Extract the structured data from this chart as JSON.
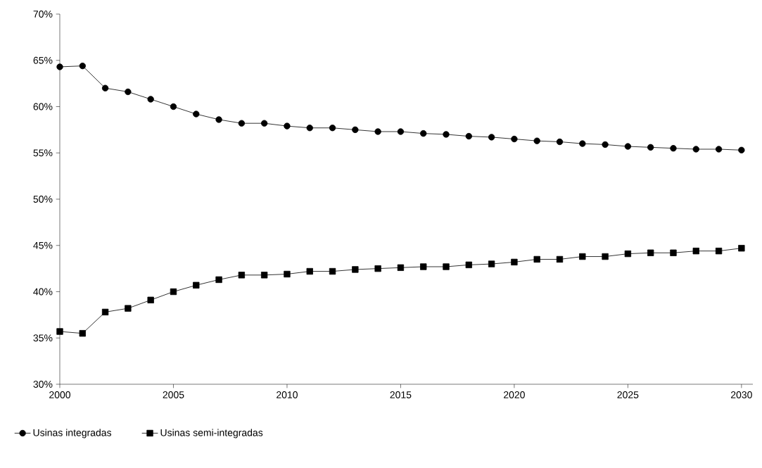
{
  "chart_data": {
    "type": "line",
    "x": [
      2000,
      2001,
      2002,
      2003,
      2004,
      2005,
      2006,
      2007,
      2008,
      2009,
      2010,
      2011,
      2012,
      2013,
      2014,
      2015,
      2016,
      2017,
      2018,
      2019,
      2020,
      2021,
      2022,
      2023,
      2024,
      2025,
      2026,
      2027,
      2028,
      2029,
      2030
    ],
    "series": [
      {
        "name": "Usinas integradas",
        "color": "#000000",
        "marker": "circle",
        "values": [
          64.3,
          64.4,
          62.0,
          61.6,
          60.8,
          60.0,
          59.2,
          58.6,
          58.2,
          58.2,
          57.9,
          57.7,
          57.7,
          57.5,
          57.3,
          57.3,
          57.1,
          57.0,
          56.8,
          56.7,
          56.5,
          56.3,
          56.2,
          56.0,
          55.9,
          55.7,
          55.6,
          55.5,
          55.4,
          55.4,
          55.3
        ]
      },
      {
        "name": "Usinas semi-integradas",
        "color": "#000000",
        "marker": "square",
        "values": [
          35.7,
          35.5,
          37.8,
          38.2,
          39.1,
          40.0,
          40.7,
          41.3,
          41.8,
          41.8,
          41.9,
          42.2,
          42.2,
          42.4,
          42.5,
          42.6,
          42.7,
          42.7,
          42.9,
          43.0,
          43.2,
          43.5,
          43.5,
          43.8,
          43.8,
          44.1,
          44.2,
          44.2,
          44.4,
          44.4,
          44.7
        ]
      }
    ],
    "xlim": [
      2000,
      2030.5
    ],
    "ylim": [
      30,
      70
    ],
    "xticks": [
      2000,
      2005,
      2010,
      2015,
      2020,
      2025,
      2030
    ],
    "yticks": [
      {
        "value": 30,
        "label": "30%"
      },
      {
        "value": 35,
        "label": "35%"
      },
      {
        "value": 40,
        "label": "40%"
      },
      {
        "value": 45,
        "label": "45%"
      },
      {
        "value": 50,
        "label": "50%"
      },
      {
        "value": 55,
        "label": "55%"
      },
      {
        "value": 60,
        "label": "60%"
      },
      {
        "value": 65,
        "label": "65%"
      },
      {
        "value": 70,
        "label": "70%"
      }
    ],
    "grid": false,
    "legend": "bottom",
    "line_style": "solid"
  }
}
